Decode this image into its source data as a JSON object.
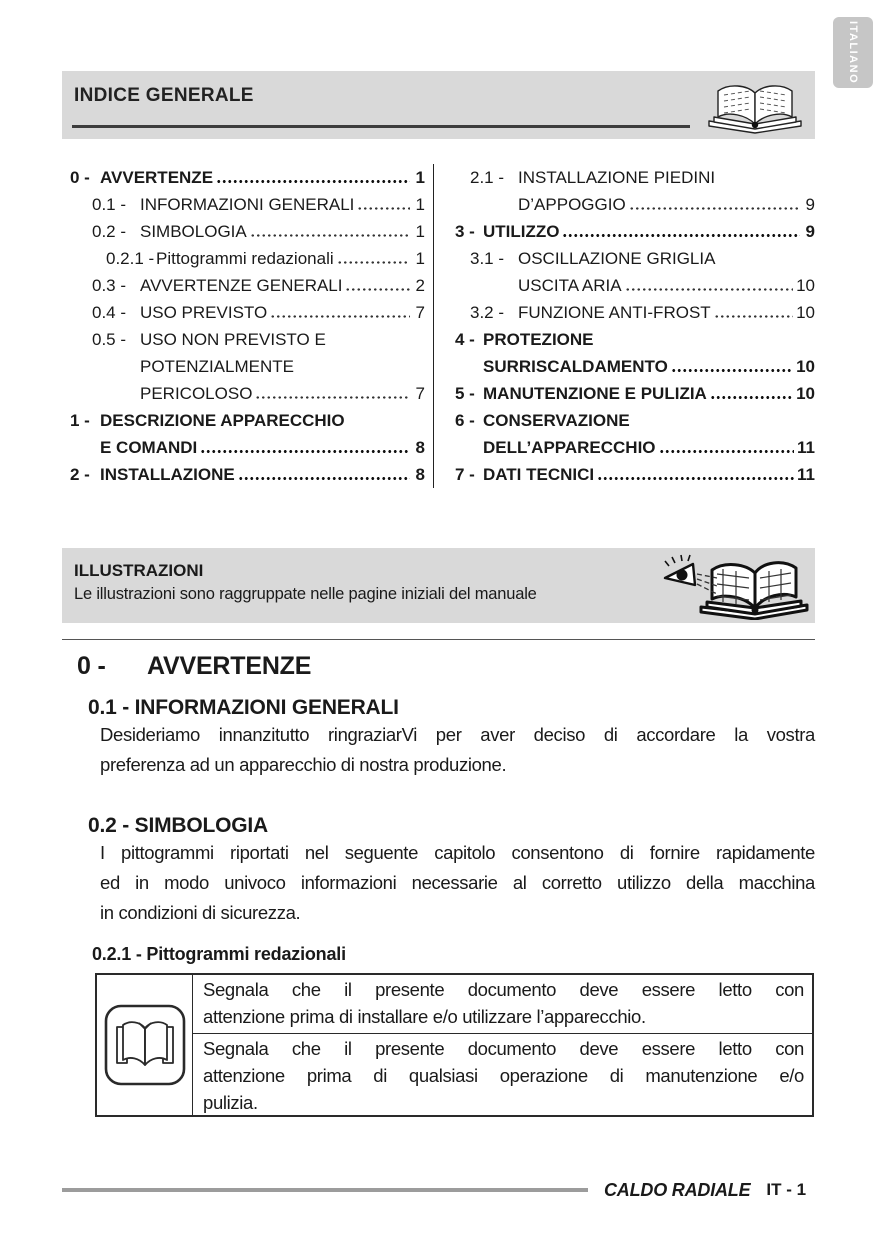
{
  "page": {
    "lang_tab": "ITALIANO"
  },
  "header": {
    "title": "INDICE GENERALE"
  },
  "toc": {
    "left": [
      {
        "num": "0 -",
        "label": "AVVERTENZE",
        "page": "1",
        "bold": true,
        "indent": 0
      },
      {
        "num": "0.1 -",
        "label": "INFORMAZIONI GENERALI",
        "page": "1",
        "bold": false,
        "indent": 1
      },
      {
        "num": "0.2 -",
        "label": "SIMBOLOGIA",
        "page": "1",
        "bold": false,
        "indent": 1
      },
      {
        "num": "0.2.1 -",
        "label": "Pittogrammi redazionali",
        "page": "1",
        "bold": false,
        "indent": 2
      },
      {
        "num": "0.3 -",
        "label": "AVVERTENZE GENERALI",
        "page": "2",
        "bold": false,
        "indent": 1
      },
      {
        "num": "0.4 -",
        "label": "USO PREVISTO",
        "page": "7",
        "bold": false,
        "indent": 1
      },
      {
        "num": "0.5 -",
        "label": "USO NON PREVISTO E",
        "page": "",
        "bold": false,
        "indent": 1
      },
      {
        "num": "",
        "label": "POTENZIALMENTE",
        "page": "",
        "bold": false,
        "indent": 1,
        "cont": true
      },
      {
        "num": "",
        "label": "PERICOLOSO",
        "page": "7",
        "bold": false,
        "indent": 1,
        "cont": true
      },
      {
        "num": "1 -",
        "label": "DESCRIZIONE APPARECCHIO",
        "page": "",
        "bold": true,
        "indent": 0
      },
      {
        "num": "",
        "label": "E COMANDI",
        "page": "8",
        "bold": true,
        "indent": 0,
        "cont": true
      },
      {
        "num": "2 -",
        "label": "INSTALLAZIONE",
        "page": "8",
        "bold": true,
        "indent": 0
      }
    ],
    "right": [
      {
        "num": "2.1 -",
        "label": "INSTALLAZIONE PIEDINI",
        "page": "",
        "bold": false,
        "indent": 1
      },
      {
        "num": "",
        "label": "D’APPOGGIO",
        "page": "9",
        "bold": false,
        "indent": 1,
        "cont": true
      },
      {
        "num": "3 -",
        "label": "UTILIZZO",
        "page": "9",
        "bold": true,
        "indent": 0
      },
      {
        "num": "3.1 -",
        "label": "OSCILLAZIONE GRIGLIA",
        "page": "",
        "bold": false,
        "indent": 1
      },
      {
        "num": "",
        "label": "USCITA ARIA",
        "page": "10",
        "bold": false,
        "indent": 1,
        "cont": true
      },
      {
        "num": "3.2 -",
        "label": "FUNZIONE ANTI-FROST",
        "page": "10",
        "bold": false,
        "indent": 1
      },
      {
        "num": "4 -",
        "label": "PROTEZIONE",
        "page": "",
        "bold": true,
        "indent": 0
      },
      {
        "num": "",
        "label": "SURRISCALDAMENTO",
        "page": "10",
        "bold": true,
        "indent": 0,
        "cont": true
      },
      {
        "num": "5 -",
        "label": "MANUTENZIONE E PULIZIA",
        "page": "10",
        "bold": true,
        "indent": 0
      },
      {
        "num": "6 -",
        "label": "CONSERVAZIONE",
        "page": "",
        "bold": true,
        "indent": 0
      },
      {
        "num": "",
        "label": "DELL’APPARECCHIO",
        "page": "11",
        "bold": true,
        "indent": 0,
        "cont": true
      },
      {
        "num": "7 -",
        "label": "DATI TECNICI",
        "page": "11",
        "bold": true,
        "indent": 0
      }
    ]
  },
  "illustrations": {
    "title": "ILLUSTRAZIONI",
    "subtitle": "Le illustrazioni sono raggruppate nelle pagine iniziali del manuale"
  },
  "content": {
    "h1_num": "0 -",
    "h1_title": "AVVERTENZE",
    "s01_title": "0.1 - INFORMAZIONI GENERALI",
    "s01_lines": [
      "Desideriamo innanzitutto ringraziarVi per aver deciso di accordare la vostra",
      "preferenza ad un apparecchio di nostra produzione."
    ],
    "s02_title": "0.2 - SIMBOLOGIA",
    "s02_lines": [
      "I pittogrammi riportati nel seguente capitolo consentono di fornire rapidamente",
      "ed in modo univoco informazioni necessarie al corretto utilizzo della macchina",
      "in condizioni di sicurezza."
    ],
    "s021_title": "0.2.1 - Pittogrammi redazionali",
    "pictogram_rows": [
      {
        "lines": [
          "Segnala che il presente documento deve essere letto con",
          "attenzione prima di installare e/o utilizzare l’apparecchio."
        ]
      },
      {
        "lines": [
          "Segnala che il presente documento deve essere letto con",
          "attenzione prima di qualsiasi operazione di manutenzione e/o",
          "pulizia."
        ]
      }
    ]
  },
  "footer": {
    "brand": "CALDO RADIALE",
    "page": "IT - 1"
  },
  "colors": {
    "box_gray": "#d9d9d9",
    "tab_gray": "#c6c6c6",
    "ink": "#1a1a1a",
    "footer_rule": "#9c9c9c"
  }
}
